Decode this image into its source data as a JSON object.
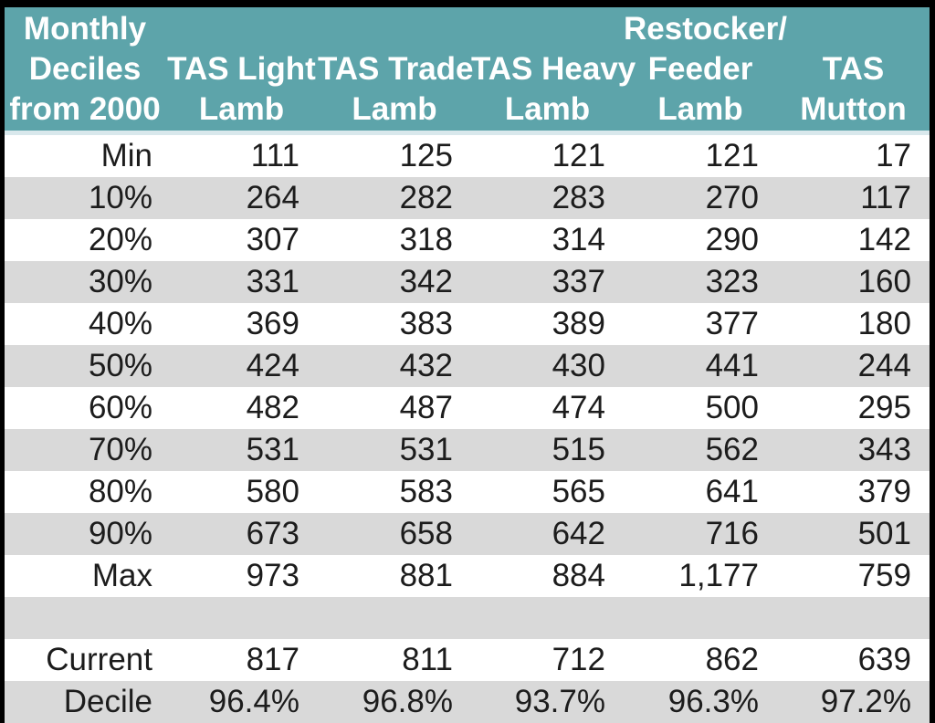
{
  "chart_data": {
    "type": "table",
    "corner_header": "Monthly\nDeciles\nfrom 2000",
    "columns": [
      "TAS Light\nLamb",
      "TAS Trade\nLamb",
      "TAS Heavy\nLamb",
      "Restocker/\nFeeder\nLamb",
      "TAS\nMutton"
    ],
    "rows": [
      {
        "label": "Min",
        "values": [
          "111",
          "125",
          "121",
          "121",
          "17"
        ]
      },
      {
        "label": "10%",
        "values": [
          "264",
          "282",
          "283",
          "270",
          "117"
        ]
      },
      {
        "label": "20%",
        "values": [
          "307",
          "318",
          "314",
          "290",
          "142"
        ]
      },
      {
        "label": "30%",
        "values": [
          "331",
          "342",
          "337",
          "323",
          "160"
        ]
      },
      {
        "label": "40%",
        "values": [
          "369",
          "383",
          "389",
          "377",
          "180"
        ]
      },
      {
        "label": "50%",
        "values": [
          "424",
          "432",
          "430",
          "441",
          "244"
        ]
      },
      {
        "label": "60%",
        "values": [
          "482",
          "487",
          "474",
          "500",
          "295"
        ]
      },
      {
        "label": "70%",
        "values": [
          "531",
          "531",
          "515",
          "562",
          "343"
        ]
      },
      {
        "label": "80%",
        "values": [
          "580",
          "583",
          "565",
          "641",
          "379"
        ]
      },
      {
        "label": "90%",
        "values": [
          "673",
          "658",
          "642",
          "716",
          "501"
        ]
      },
      {
        "label": "Max",
        "values": [
          "973",
          "881",
          "884",
          "1,177",
          "759"
        ]
      },
      {
        "label": "",
        "values": [
          "",
          "",
          "",
          "",
          ""
        ]
      },
      {
        "label": "Current",
        "values": [
          "817",
          "811",
          "712",
          "862",
          "639"
        ]
      },
      {
        "label": "Decile",
        "values": [
          "96.4%",
          "96.8%",
          "93.7%",
          "96.3%",
          "97.2%"
        ]
      }
    ],
    "layout_hints": {
      "row_shading": "alternating white and gray starting with white at Min",
      "value_alignment": "right",
      "header_alignment": "center-bottom"
    }
  },
  "colors": {
    "header_bg": "#5DA4AA",
    "header_text": "#FFFFFF",
    "alt_row_bg": "#D9D9D9",
    "body_text": "#1C1C1C",
    "frame": "#000000",
    "header_divider": "#D9E8EC"
  }
}
